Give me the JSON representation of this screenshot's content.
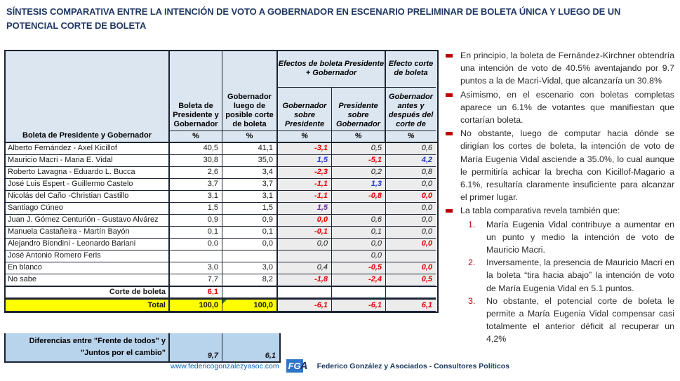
{
  "title": "SÍNTESIS COMPARATIVA ENTRE LA INTENCIÓN DE VOTO A GOBERNADOR EN ESCENARIO PRELIMINAR DE BOLETA ÚNICA Y LUEGO DE UN POTENCIAL CORTE DE BOLETA",
  "palette": {
    "title_navy": "#1F3864",
    "header_bg": "#DCE6F1",
    "effects_bg": "#ECECEC",
    "total_yellow": "#FFFF00",
    "diff_blue": "#B8D3EC",
    "negative_red": "#E00000",
    "positive_blue": "#1F3BC7",
    "positive_purple": "#7030A0",
    "bullet_red": "#C00000"
  },
  "table": {
    "corner_label": "Boleta de Presidente y Gobernador",
    "headers": {
      "col_ballot": "Boleta de Presidente y Gobernador",
      "col_after_cut": "Gobernador luego de posible corte de boleta",
      "effects_group": "Efectos de boleta Presidente + Gobernador",
      "eff_gov_over_pres": "Gobernador sobre Presidente",
      "eff_pres_over_gov": "Presidente sobre Gobernador",
      "cut_group": "Efecto corte de boleta",
      "cut_before_after": "Gobernador antes y después del corte de",
      "pct": "%"
    },
    "rows": [
      {
        "label": "Alberto Fernández - Axel Kicillof",
        "c1": "40,5",
        "c2": "41,1",
        "e1": "-3,1",
        "e2": "0,5",
        "e3": "0,6"
      },
      {
        "label": "Mauricio Macri - Maria E. Vidal",
        "c1": "30,8",
        "c2": "35,0",
        "e1": "1,5",
        "e2": "-5,1",
        "e3": "4,2"
      },
      {
        "label": "Roberto Lavagna - Eduardo L. Bucca",
        "c1": "2,6",
        "c2": "3,4",
        "e1": "-2,3",
        "e2": "0,2",
        "e3": "0,8"
      },
      {
        "label": "José Luis Espert - Guillermo Castelo",
        "c1": "3,7",
        "c2": "3,7",
        "e1": "-1,1",
        "e2": "1,3",
        "e3": "0,0"
      },
      {
        "label": "Nicolás del Caño -Christian Castillo",
        "c1": "3,1",
        "c2": "3,1",
        "e1": "-1,1",
        "e2": "-0,8",
        "e3": "0,0"
      },
      {
        "label": "Santiago Cúneo",
        "c1": "1,5",
        "c2": "1,5",
        "e1": "1,5",
        "e2": "",
        "e3": "0,0"
      },
      {
        "label": "Juan J. Gómez Centurión - Gustavo Alvárez",
        "c1": "0,9",
        "c2": "0,9",
        "e1": "0,0",
        "e2": "0,6",
        "e3": "0,0"
      },
      {
        "label": "Manuela Castañeira - Martín Bayón",
        "c1": "0,1",
        "c2": "0,1",
        "e1": "-0,1",
        "e2": "0,1",
        "e3": "0,0"
      },
      {
        "label": "Alejandro Biondini - Leonardo Bariani",
        "c1": "0,0",
        "c2": "0,0",
        "e1": "0,0",
        "e2": "0,0",
        "e3": "0,0"
      },
      {
        "label": "José Antonio Romero Feris",
        "c1": "",
        "c2": "",
        "e1": "",
        "e2": "0,0",
        "e3": ""
      },
      {
        "label": "En blanco",
        "c1": "3,0",
        "c2": "3,0",
        "e1": "0,4",
        "e2": "-0,5",
        "e3": "0,0"
      },
      {
        "label": "No sabe",
        "c1": "7,7",
        "c2": "8,2",
        "e1": "-1,8",
        "e2": "-2,4",
        "e3": "0,5"
      }
    ],
    "corte_row": {
      "label": "Corte de boleta",
      "c1": "6,1"
    },
    "total_row": {
      "label": "Total",
      "c1": "100,0",
      "c2": "100,0",
      "e1": "-6,1",
      "e2": "-6,1",
      "e3": "6,1"
    },
    "diff_row": {
      "label_line1": "Diferencias entre \"Frente de todos\" y",
      "label_line2": "\"Juntos por el cambio\"",
      "v1": "9,7",
      "v2": "6,1"
    }
  },
  "notes": [
    "En principio, la boleta de Fernández-Kirchner obtendría una intención de voto de 40.5% aventajando por 9.7 puntos a la de Macri-Vidal, que alcanzaría un 30.8%",
    "Asimismo, en el escenario con boletas completas aparece un 6.1% de votantes que manifiestan que cortarían boleta.",
    "No obstante, luego de computar hacia dónde se dirigían los cortes de boleta, la intención de voto de María Eugenia Vidal asciende a 35.0%, lo cual aunque le permitiría achicar la brecha con Kicillof-Magario a 6.1%, resultaría claramente insuficiente para alcanzar el primer lugar.",
    "La tabla comparativa revela también que:"
  ],
  "numbered": [
    {
      "n": "1.",
      "text": "María Eugenia Vidal contribuye a aumentar en un punto y medio la intención de voto de Mauricio Macri."
    },
    {
      "n": "2.",
      "text": "Inversamente, la presencia de Mauricio Macri en la boleta  “tira hacia abajo” la intención de voto de María Eugenia Vidal en 5.1 puntos."
    },
    {
      "n": "3.",
      "text": "No obstante, el potencial corte de boleta le permite a María Eugenia Vidal compensar casi totalmente el anterior déficit al recuperar un 4,2%"
    }
  ],
  "footer": {
    "url": "www.federicogonzalezyasoc.com",
    "logo_fg": "FG",
    "logo_a": "A",
    "company": "Federico González y Asociados - Consultores Políticos"
  }
}
